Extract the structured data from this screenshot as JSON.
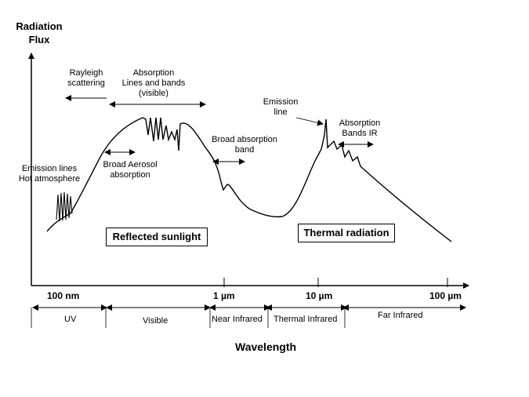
{
  "axes": {
    "y_title_line1": "Radiation",
    "y_title_line2": "Flux",
    "x_title": "Wavelength"
  },
  "ticks": {
    "t100nm": "100 nm",
    "t1um": "1 µm",
    "t10um": "10 µm",
    "t100um": "100 µm"
  },
  "regions": {
    "uv": "UV",
    "visible": "Visible",
    "near_ir": "Near Infrared",
    "thermal_ir": "Thermal Infrared",
    "far_ir": "Far Infrared"
  },
  "annotations": {
    "rayleigh_1": "Rayleigh",
    "rayleigh_2": "scattering",
    "absorption_vis_1": "Absorption",
    "absorption_vis_2": "Lines and bands",
    "absorption_vis_3": "(visible)",
    "emission_lines_1": "Emission lines",
    "emission_lines_2": "Hot atmosphere",
    "aerosol_1": "Broad Aerosol",
    "aerosol_2": "absorption",
    "broad_abs_1": "Broad absorption",
    "broad_abs_2": "band",
    "emission_line_1": "Emission",
    "emission_line_2": "line",
    "abs_ir_1": "Absorption",
    "abs_ir_2": "Bands IR"
  },
  "boxes": {
    "reflected": "Reflected sunlight",
    "thermal": "Thermal radiation"
  }
}
